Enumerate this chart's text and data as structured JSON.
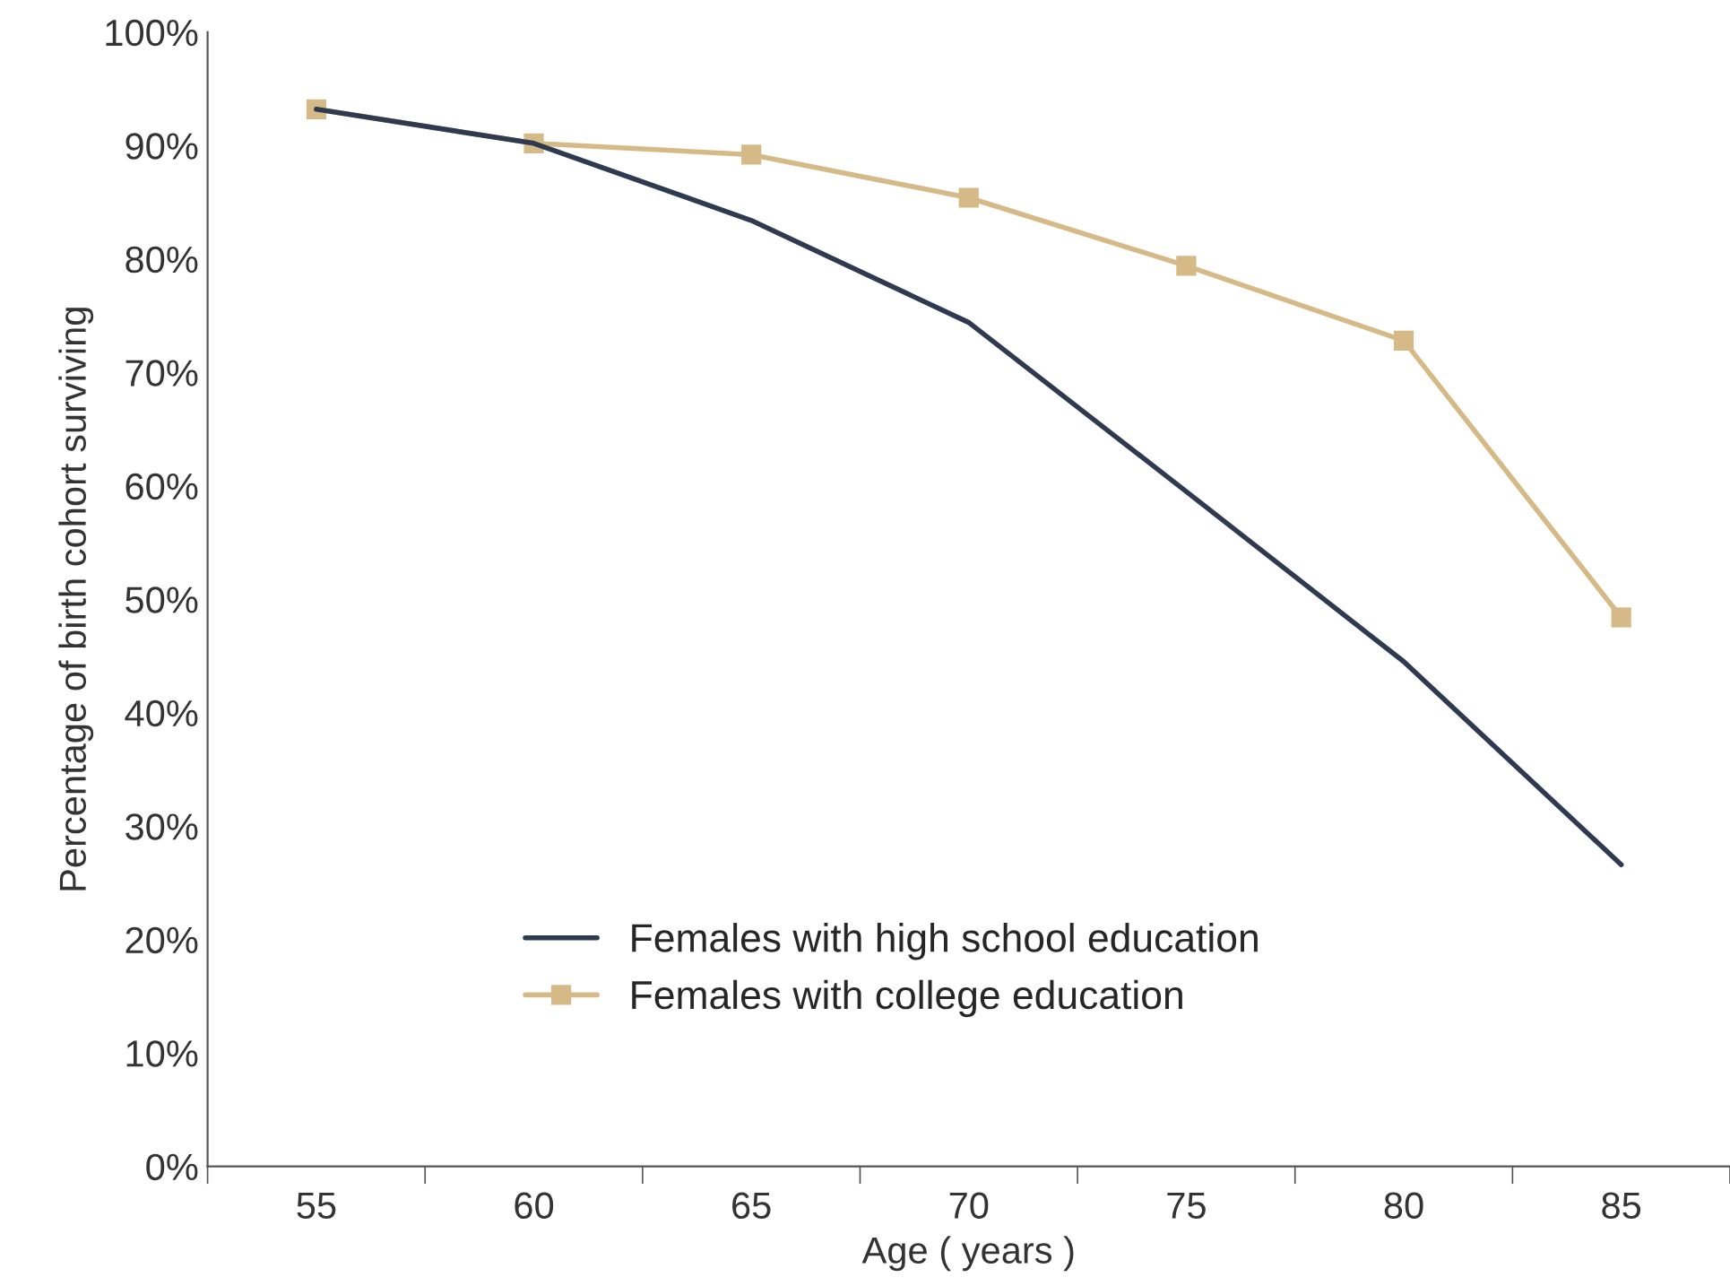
{
  "chart_data": {
    "type": "line",
    "xlabel": "Age ( years )",
    "ylabel": "Percentage of birth cohort surviving",
    "categories": [
      "55",
      "60",
      "65",
      "70",
      "75",
      "80",
      "85"
    ],
    "series": [
      {
        "name": "Females with high school education",
        "color": "#2e3a4f",
        "marker": "none",
        "values": [
          93.2,
          90.2,
          83.4,
          74.4,
          59.5,
          44.5,
          26.6
        ]
      },
      {
        "name": "Females with college education",
        "color": "#d5ba88",
        "marker": "square",
        "values": [
          93.2,
          90.2,
          89.2,
          85.4,
          79.4,
          72.8,
          48.4
        ]
      }
    ],
    "ylim": [
      0,
      100
    ],
    "yticks": [
      {
        "value": 0,
        "label": "0%"
      },
      {
        "value": 10,
        "label": "10%"
      },
      {
        "value": 20,
        "label": "20%"
      },
      {
        "value": 30,
        "label": "30%"
      },
      {
        "value": 40,
        "label": "40%"
      },
      {
        "value": 50,
        "label": "50%"
      },
      {
        "value": 60,
        "label": "60%"
      },
      {
        "value": 70,
        "label": "70%"
      },
      {
        "value": 80,
        "label": "80%"
      },
      {
        "value": 90,
        "label": "90%"
      },
      {
        "value": 100,
        "label": "100%"
      }
    ],
    "grid": false,
    "legend": "bottom",
    "line_style": "solid"
  }
}
